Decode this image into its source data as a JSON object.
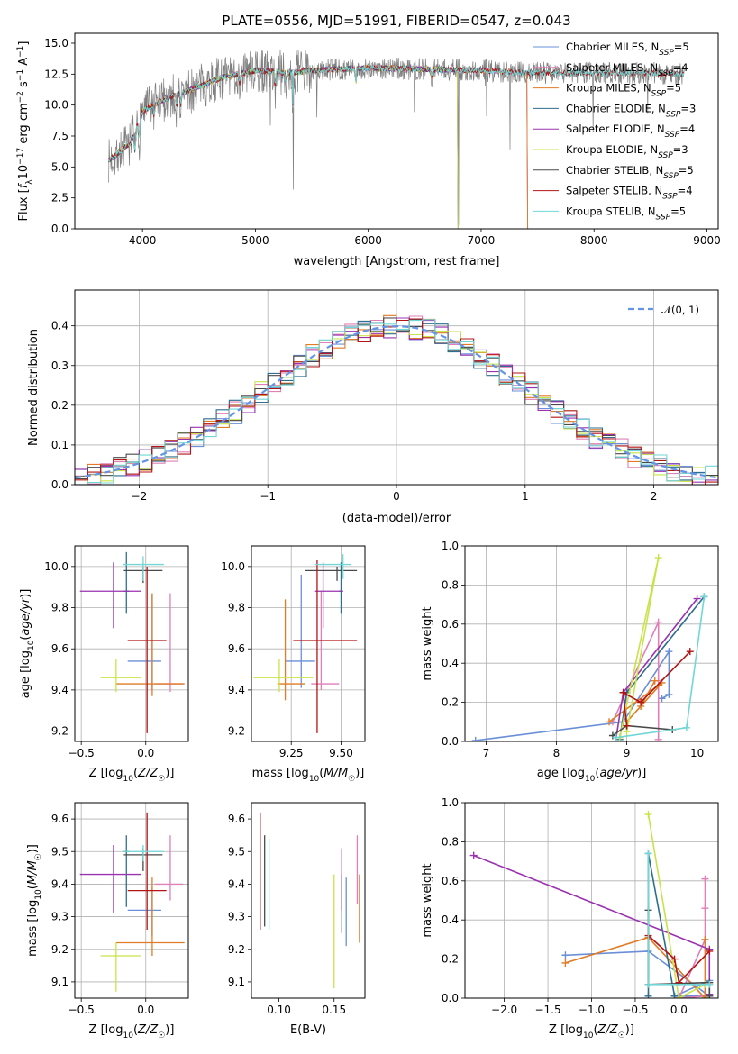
{
  "page_title": "PLATE=0556, MJD=51991, FIBERID=0547, z=0.043",
  "colors": {
    "Chabrier MILES": "#6a8fd8",
    "Salpeter MILES": "#e07fb8",
    "Kroupa MILES": "#e07b26",
    "Chabrier ELODIE": "#2e6e8e",
    "Salpeter ELODIE": "#9a32b0",
    "Kroupa ELODIE": "#c8e34a",
    "Chabrier STELIB": "#4a4a4a",
    "Salpeter STELIB": "#b31515",
    "Kroupa STELIB": "#72d6d6"
  },
  "chart_data": [
    {
      "id": "spectrum",
      "type": "line",
      "title": "PLATE=0556, MJD=51991, FIBERID=0547, z=0.043",
      "xlabel": "wavelength [Angstrom, rest frame]",
      "ylabel": "Flux [f_λ10^{-17} erg cm^{-2} s^{-1} A^{-1}]",
      "xlim": [
        3400,
        9100
      ],
      "ylim": [
        0,
        15.8
      ],
      "xticks": [
        "4000",
        "5000",
        "6000",
        "7000",
        "8000",
        "9000"
      ],
      "yticks": [
        "0.0",
        "2.5",
        "5.0",
        "7.5",
        "10.0",
        "12.5",
        "15.0"
      ],
      "grid": false,
      "legend_position": "top-right",
      "legend": [
        {
          "name": "Chabrier MILES",
          "nssp": "5"
        },
        {
          "name": "Salpeter MILES",
          "nssp": "4"
        },
        {
          "name": "Kroupa MILES",
          "nssp": "5"
        },
        {
          "name": "Chabrier ELODIE",
          "nssp": "3"
        },
        {
          "name": "Salpeter ELODIE",
          "nssp": "4"
        },
        {
          "name": "Kroupa ELODIE",
          "nssp": "3"
        },
        {
          "name": "Chabrier STELIB",
          "nssp": "5"
        },
        {
          "name": "Salpeter STELIB",
          "nssp": "4"
        },
        {
          "name": "Kroupa STELIB",
          "nssp": "5"
        }
      ],
      "continuum": {
        "x": [
          3700,
          3900,
          4000,
          4200,
          4500,
          4700,
          5000,
          5300,
          5500,
          6000,
          6500,
          7000,
          7400,
          8000,
          8500,
          8800
        ],
        "y": [
          5.5,
          7.0,
          9.5,
          10.5,
          11.5,
          12.2,
          12.8,
          12.6,
          12.8,
          13.0,
          12.9,
          12.8,
          12.6,
          12.6,
          12.6,
          12.5
        ]
      },
      "data_range": [
        3700,
        8800
      ],
      "model_ranges": {
        "Chabrier MILES": [
          3700,
          7420
        ],
        "Salpeter MILES": [
          3700,
          7420
        ],
        "Kroupa MILES": [
          3700,
          7420
        ],
        "Chabrier ELODIE": [
          3700,
          6800
        ],
        "Salpeter ELODIE": [
          3700,
          6800
        ],
        "Kroupa ELODIE": [
          3700,
          6800
        ],
        "Chabrier STELIB": [
          3700,
          8800
        ],
        "Salpeter STELIB": [
          3700,
          8800
        ],
        "Kroupa STELIB": [
          3700,
          8800
        ]
      },
      "absorption_lines": [
        {
          "x": 3934,
          "depth": 2.2
        },
        {
          "x": 3969,
          "depth": 2.0
        },
        {
          "x": 4101,
          "depth": 1.2
        },
        {
          "x": 4304,
          "depth": 1.4
        },
        {
          "x": 4340,
          "depth": 1.2
        },
        {
          "x": 4861,
          "depth": 1.0
        },
        {
          "x": 5175,
          "depth": 1.6
        },
        {
          "x": 5270,
          "depth": 0.9
        },
        {
          "x": 5335,
          "depth": 12.6
        },
        {
          "x": 5890,
          "depth": 1.5
        },
        {
          "x": 6563,
          "depth": 0.9
        },
        {
          "x": 6800,
          "depth": 12.8
        }
      ]
    },
    {
      "id": "residuals",
      "type": "histogram",
      "xlabel": "(data-model)/error",
      "ylabel": "Normed distribution",
      "xlim": [
        -2.5,
        2.5
      ],
      "ylim": [
        0,
        0.49
      ],
      "xticks": [
        -2,
        -1,
        0,
        1,
        2
      ],
      "yticks": [
        "0.0",
        "0.1",
        "0.2",
        "0.3",
        "0.4"
      ],
      "grid": true,
      "legend_position": "top-right",
      "curve_label": "𝒩(0, 1)",
      "bin_width": 0.1
    },
    {
      "id": "age_vs_Z",
      "type": "errorbar",
      "xlabel": "Z [log10(Z/Z☉)]",
      "ylabel": "age [log10(age/yr)]",
      "xlim": [
        -0.55,
        0.33
      ],
      "ylim": [
        9.15,
        10.1
      ],
      "xticks": [
        "-0.5",
        "0.0"
      ],
      "yticks": [
        "9.2",
        "9.4",
        "9.6",
        "9.8",
        "10.0"
      ],
      "grid": true,
      "points": [
        {
          "series": "Chabrier MILES",
          "x": 0.05,
          "xerr": [
            0.19,
            0.07
          ],
          "y": 9.54,
          "yerr": [
            0.14,
            0.32
          ]
        },
        {
          "series": "Salpeter MILES",
          "x": 0.19,
          "xerr": [
            0.12,
            0.1
          ],
          "y": 9.43,
          "yerr": [
            0.04,
            0.44
          ]
        },
        {
          "series": "Kroupa MILES",
          "x": 0.05,
          "xerr": [
            0.28,
            0.25
          ],
          "y": 9.43,
          "yerr": [
            0.06,
            0.44
          ]
        },
        {
          "series": "Chabrier ELODIE",
          "x": -0.15,
          "xerr": [
            0.02,
            0.02
          ],
          "y": 9.88,
          "yerr": [
            0.11,
            0.19
          ]
        },
        {
          "series": "Salpeter ELODIE",
          "x": -0.25,
          "xerr": [
            0.26,
            0.21
          ],
          "y": 9.88,
          "yerr": [
            0.18,
            0.14
          ]
        },
        {
          "series": "Kroupa ELODIE",
          "x": -0.23,
          "xerr": [
            0.12,
            0.19
          ],
          "y": 9.46,
          "yerr": [
            0.07,
            0.09
          ]
        },
        {
          "series": "Chabrier STELIB",
          "x": -0.02,
          "xerr": [
            0.15,
            0.15
          ],
          "y": 9.98,
          "yerr": [
            0.06,
            0.02
          ]
        },
        {
          "series": "Salpeter STELIB",
          "x": 0.01,
          "xerr": [
            0.15,
            0.15
          ],
          "y": 9.64,
          "yerr": [
            0.45,
            0.36
          ]
        },
        {
          "series": "Kroupa STELIB",
          "x": -0.02,
          "xerr": [
            0.16,
            0.16
          ],
          "y": 10.01,
          "yerr": [
            0.08,
            0.04
          ]
        }
      ]
    },
    {
      "id": "age_vs_mass",
      "type": "errorbar",
      "xlabel": "mass [log10(M/M☉)]",
      "ylabel": "",
      "xlim": [
        9.05,
        9.62
      ],
      "ylim": [
        9.15,
        10.1
      ],
      "xticks": [
        "9.25",
        "9.50"
      ],
      "yticks": [
        "9.2",
        "9.4",
        "9.6",
        "9.8",
        "10.0"
      ],
      "grid": true,
      "points": [
        {
          "series": "Chabrier MILES",
          "x": 9.3,
          "xerr": [
            0.08,
            0.07
          ],
          "y": 9.54,
          "yerr": [
            0.13,
            0.42
          ]
        },
        {
          "series": "Salpeter MILES",
          "x": 9.4,
          "xerr": [
            0.05,
            0.09
          ],
          "y": 9.43,
          "yerr": [
            0.03,
            0.45
          ]
        },
        {
          "series": "Kroupa MILES",
          "x": 9.22,
          "xerr": [
            0.04,
            0.1
          ],
          "y": 9.43,
          "yerr": [
            0.08,
            0.41
          ]
        },
        {
          "series": "Chabrier ELODIE",
          "x": 9.5,
          "xerr": [
            0.01,
            0.01
          ],
          "y": 9.88,
          "yerr": [
            0.11,
            0.14
          ]
        },
        {
          "series": "Salpeter ELODIE",
          "x": 9.41,
          "xerr": [
            0.04,
            0.1
          ],
          "y": 9.88,
          "yerr": [
            0.18,
            0.14
          ]
        },
        {
          "series": "Kroupa ELODIE",
          "x": 9.19,
          "xerr": [
            0.13,
            0.17
          ],
          "y": 9.46,
          "yerr": [
            0.07,
            0.09
          ]
        },
        {
          "series": "Chabrier STELIB",
          "x": 9.48,
          "xerr": [
            0.16,
            0.1
          ],
          "y": 9.98,
          "yerr": [
            0.05,
            0.02
          ]
        },
        {
          "series": "Salpeter STELIB",
          "x": 9.38,
          "xerr": [
            0.12,
            0.2
          ],
          "y": 9.64,
          "yerr": [
            0.45,
            0.39
          ]
        },
        {
          "series": "Kroupa STELIB",
          "x": 9.51,
          "xerr": [
            0.14,
            0.04
          ],
          "y": 10.01,
          "yerr": [
            0.07,
            0.05
          ]
        }
      ]
    },
    {
      "id": "weight_vs_age",
      "type": "line",
      "xlabel": "age [log10(age/yr)]",
      "ylabel": "mass weight",
      "xlim": [
        6.7,
        10.3
      ],
      "ylim": [
        0,
        1
      ],
      "xticks": [
        "7",
        "8",
        "9",
        "10"
      ],
      "yticks": [
        "0.0",
        "0.2",
        "0.4",
        "0.6",
        "0.8",
        "1.0"
      ],
      "grid": true,
      "series": [
        {
          "name": "Chabrier MILES",
          "x": [
            6.85,
            8.95,
            9.6,
            9.6,
            9.5
          ],
          "y": [
            0.005,
            0.1,
            0.46,
            0.24,
            0.22
          ]
        },
        {
          "name": "Salpeter MILES",
          "x": [
            8.8,
            9.45,
            9.45,
            9.45
          ],
          "y": [
            0.1,
            0.61,
            0.31,
            0.01
          ]
        },
        {
          "name": "Kroupa MILES",
          "x": [
            8.75,
            9.5,
            9.0,
            9.2,
            9.4
          ],
          "y": [
            0.1,
            0.3,
            0.1,
            0.18,
            0.31
          ]
        },
        {
          "name": "Chabrier ELODIE",
          "x": [
            8.9,
            9.0,
            10.1
          ],
          "y": [
            0.01,
            0.25,
            0.74
          ]
        },
        {
          "name": "Salpeter ELODIE",
          "x": [
            8.85,
            8.95,
            10.0
          ],
          "y": [
            0.02,
            0.25,
            0.73
          ]
        },
        {
          "name": "Kroupa ELODIE",
          "x": [
            8.9,
            9.45,
            9.0
          ],
          "y": [
            0.02,
            0.94,
            0.05
          ]
        },
        {
          "name": "Chabrier STELIB",
          "x": [
            8.8,
            9.0,
            9.65
          ],
          "y": [
            0.03,
            0.08,
            0.06
          ]
        },
        {
          "name": "Salpeter STELIB",
          "x": [
            9.0,
            8.95,
            9.2,
            9.9
          ],
          "y": [
            0.08,
            0.25,
            0.2,
            0.46
          ]
        },
        {
          "name": "Kroupa STELIB",
          "x": [
            8.85,
            9.85,
            10.1
          ],
          "y": [
            0.02,
            0.07,
            0.74
          ]
        }
      ]
    },
    {
      "id": "mass_vs_Z",
      "type": "errorbar",
      "xlabel": "Z [log10(Z/Z☉)]",
      "ylabel": "mass [log10(M/M☉)]",
      "xlim": [
        -0.55,
        0.33
      ],
      "ylim": [
        9.05,
        9.65
      ],
      "xticks": [
        "-0.5",
        "0.0"
      ],
      "yticks": [
        "9.1",
        "9.2",
        "9.3",
        "9.4",
        "9.5",
        "9.6"
      ],
      "grid": true,
      "points": [
        {
          "series": "Chabrier MILES",
          "x": 0.05,
          "xerr": [
            0.19,
            0.07
          ],
          "y": 9.32,
          "yerr": [
            0.08,
            0.07
          ]
        },
        {
          "series": "Salpeter MILES",
          "x": 0.19,
          "xerr": [
            0.12,
            0.1
          ],
          "y": 9.4,
          "yerr": [
            0.05,
            0.15
          ]
        },
        {
          "series": "Kroupa MILES",
          "x": 0.05,
          "xerr": [
            0.28,
            0.25
          ],
          "y": 9.22,
          "yerr": [
            0.04,
            0.2
          ]
        },
        {
          "series": "Chabrier ELODIE",
          "x": -0.15,
          "xerr": [
            0.02,
            0.02
          ],
          "y": 9.5,
          "yerr": [
            0.17,
            0.05
          ]
        },
        {
          "series": "Salpeter ELODIE",
          "x": -0.25,
          "xerr": [
            0.26,
            0.21
          ],
          "y": 9.43,
          "yerr": [
            0.12,
            0.09
          ]
        },
        {
          "series": "Kroupa ELODIE",
          "x": -0.23,
          "xerr": [
            0.12,
            0.19
          ],
          "y": 9.18,
          "yerr": [
            0.11,
            0.04
          ]
        },
        {
          "series": "Chabrier STELIB",
          "x": -0.02,
          "xerr": [
            0.15,
            0.15
          ],
          "y": 9.49,
          "yerr": [
            0.05,
            0.02
          ]
        },
        {
          "series": "Salpeter STELIB",
          "x": 0.01,
          "xerr": [
            0.15,
            0.15
          ],
          "y": 9.38,
          "yerr": [
            0.12,
            0.24
          ]
        },
        {
          "series": "Kroupa STELIB",
          "x": -0.02,
          "xerr": [
            0.16,
            0.16
          ],
          "y": 9.5,
          "yerr": [
            0.03,
            0.02
          ]
        }
      ]
    },
    {
      "id": "mass_vs_ebv",
      "type": "errorbar",
      "xlabel": "E(B-V)",
      "ylabel": "",
      "xlim": [
        0.075,
        0.178
      ],
      "ylim": [
        9.05,
        9.65
      ],
      "xticks": [
        "0.10",
        "0.15"
      ],
      "yticks": [
        "9.1",
        "9.2",
        "9.3",
        "9.4",
        "9.5",
        "9.6"
      ],
      "grid": false,
      "points": [
        {
          "series": "Chabrier MILES",
          "x": 0.161,
          "y": 9.32,
          "yerr": [
            0.11,
            0.1
          ]
        },
        {
          "series": "Salpeter MILES",
          "x": 0.171,
          "y": 9.44,
          "yerr": [
            0.1,
            0.11
          ]
        },
        {
          "series": "Kroupa MILES",
          "x": 0.173,
          "y": 9.32,
          "yerr": [
            0.1,
            0.11
          ]
        },
        {
          "series": "Chabrier ELODIE",
          "x": 0.157,
          "y": 9.34,
          "yerr": [
            0.09,
            0.09
          ]
        },
        {
          "series": "Salpeter ELODIE",
          "x": 0.157,
          "y": 9.43,
          "yerr": [
            0.11,
            0.08
          ]
        },
        {
          "series": "Kroupa ELODIE",
          "x": 0.15,
          "y": 9.18,
          "yerr": [
            0.1,
            0.25
          ]
        },
        {
          "series": "Chabrier STELIB",
          "x": 0.087,
          "y": 9.41,
          "yerr": [
            0.14,
            0.14
          ]
        },
        {
          "series": "Salpeter STELIB",
          "x": 0.083,
          "y": 9.44,
          "yerr": [
            0.18,
            0.18
          ]
        },
        {
          "series": "Kroupa STELIB",
          "x": 0.091,
          "y": 9.41,
          "yerr": [
            0.15,
            0.13
          ]
        }
      ]
    },
    {
      "id": "weight_vs_Z",
      "type": "line",
      "xlabel": "Z [log10(Z/Z☉)]",
      "ylabel": "mass weight",
      "xlim": [
        -2.45,
        0.45
      ],
      "ylim": [
        0,
        1
      ],
      "xticks": [
        "-2.0",
        "-1.5",
        "-1.0",
        "-0.5",
        "0.0"
      ],
      "yticks": [
        "0.0",
        "0.2",
        "0.4",
        "0.6",
        "0.8",
        "1.0"
      ],
      "grid": true,
      "series": [
        {
          "name": "Chabrier MILES",
          "x": [
            -1.3,
            -0.35,
            0.35,
            -0.05,
            0.35
          ],
          "y": [
            0.22,
            0.24,
            0.01,
            0.01,
            0.09
          ]
        },
        {
          "name": "Salpeter MILES",
          "x": [
            0.3,
            0.3,
            0.3,
            0.0,
            0.3
          ],
          "y": [
            0.61,
            0.46,
            0.01,
            0.0,
            0.3
          ]
        },
        {
          "name": "Kroupa MILES",
          "x": [
            -1.3,
            -0.35,
            0.3,
            0.3
          ],
          "y": [
            0.18,
            0.31,
            0.0,
            0.3
          ]
        },
        {
          "name": "Chabrier ELODIE",
          "x": [
            -0.35,
            -0.35,
            -0.05
          ],
          "y": [
            0.01,
            0.74,
            0.01
          ]
        },
        {
          "name": "Salpeter ELODIE",
          "x": [
            -2.35,
            0.35,
            0.35
          ],
          "y": [
            0.73,
            0.25,
            0.02
          ]
        },
        {
          "name": "Kroupa ELODIE",
          "x": [
            -0.35,
            0.0,
            0.3
          ],
          "y": [
            0.94,
            0.0,
            0.07
          ]
        },
        {
          "name": "Chabrier STELIB",
          "x": [
            -0.35,
            -0.35,
            0.35,
            0.35
          ],
          "y": [
            0.45,
            0.07,
            0.08,
            0.01
          ]
        },
        {
          "name": "Salpeter STELIB",
          "x": [
            -0.35,
            -0.05,
            0.0,
            0.35
          ],
          "y": [
            0.32,
            0.2,
            0.08,
            0.24
          ]
        },
        {
          "name": "Kroupa STELIB",
          "x": [
            -0.35,
            -0.35,
            0.35
          ],
          "y": [
            0.74,
            0.07,
            0.07
          ]
        }
      ]
    }
  ]
}
